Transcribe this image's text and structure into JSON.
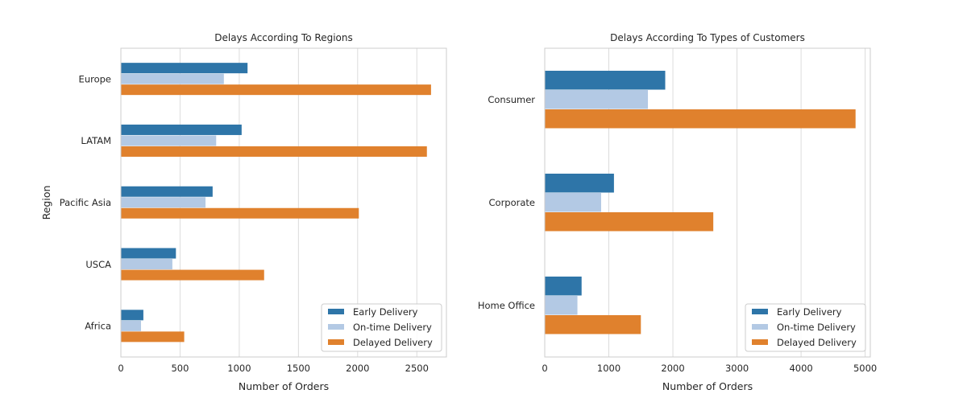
{
  "colors": {
    "early": "#2e75a8",
    "ontime": "#b3c9e4",
    "delayed": "#e0812d",
    "grid": "#dcdcdc",
    "frame": "#cccccc"
  },
  "chart_data": [
    {
      "type": "bar",
      "orientation": "horizontal",
      "title": "Delays According To Regions",
      "xlabel": "Number of Orders",
      "ylabel": "Region",
      "categories": [
        "Europe",
        "LATAM",
        "Pacific Asia",
        "USCA",
        "Africa"
      ],
      "series": [
        {
          "name": "Early Delivery",
          "values": [
            1070,
            1020,
            775,
            465,
            190
          ]
        },
        {
          "name": "On-time Delivery",
          "values": [
            870,
            805,
            715,
            435,
            170
          ]
        },
        {
          "name": "Delayed Delivery",
          "values": [
            2620,
            2585,
            2010,
            1210,
            535
          ]
        }
      ],
      "xlim": [
        0,
        2750
      ],
      "xticks": [
        0,
        500,
        1000,
        1500,
        2000,
        2500
      ],
      "grid": true,
      "legend": "lower-right"
    },
    {
      "type": "bar",
      "orientation": "horizontal",
      "title": "Delays According To Types of Customers",
      "xlabel": "Number of Orders",
      "ylabel": "",
      "categories": [
        "Consumer",
        "Corporate",
        "Home Office"
      ],
      "series": [
        {
          "name": "Early Delivery",
          "values": [
            1880,
            1080,
            575
          ]
        },
        {
          "name": "On-time Delivery",
          "values": [
            1610,
            880,
            510
          ]
        },
        {
          "name": "Delayed Delivery",
          "values": [
            4850,
            2630,
            1500
          ]
        }
      ],
      "xlim": [
        0,
        5080
      ],
      "xticks": [
        0,
        1000,
        2000,
        3000,
        4000,
        5000
      ],
      "grid": true,
      "legend": "lower-right"
    }
  ]
}
